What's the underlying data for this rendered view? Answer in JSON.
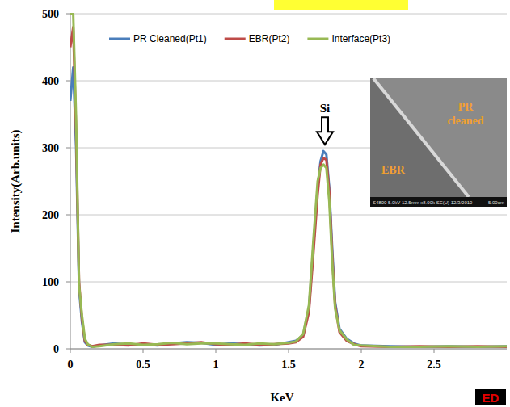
{
  "chart_data": {
    "type": "line",
    "x_label": "KeV",
    "y_label": "Intensity(Arb.units)",
    "xlim": [
      0,
      3
    ],
    "xticks": [
      0,
      0.5,
      1,
      1.5,
      2,
      2.5
    ],
    "ylim": [
      0,
      500
    ],
    "yticks": [
      0,
      100,
      200,
      300,
      400,
      500
    ],
    "grid": true,
    "legend": "top",
    "x": [
      0,
      0.02,
      0.04,
      0.06,
      0.08,
      0.1,
      0.12,
      0.15,
      0.2,
      0.3,
      0.4,
      0.5,
      0.6,
      0.7,
      0.8,
      0.9,
      1.0,
      1.1,
      1.2,
      1.3,
      1.4,
      1.5,
      1.55,
      1.6,
      1.64,
      1.67,
      1.7,
      1.72,
      1.74,
      1.76,
      1.78,
      1.8,
      1.82,
      1.85,
      1.9,
      1.95,
      2.0,
      2.2,
      2.4,
      2.6,
      2.8,
      3.0
    ],
    "series": [
      {
        "name": "PR Cleaned(Pt1)",
        "color": "#4a7ebb",
        "values": [
          370,
          420,
          300,
          90,
          40,
          10,
          5,
          3,
          5,
          8,
          6,
          7,
          5,
          8,
          10,
          9,
          6,
          8,
          7,
          5,
          6,
          10,
          12,
          20,
          60,
          150,
          240,
          280,
          295,
          290,
          240,
          150,
          70,
          30,
          15,
          8,
          5,
          4,
          3,
          4,
          3,
          4
        ]
      },
      {
        "name": "EBR(Pt2)",
        "color": "#be4b48",
        "values": [
          450,
          480,
          320,
          100,
          45,
          12,
          6,
          4,
          6,
          6,
          5,
          8,
          6,
          7,
          8,
          10,
          7,
          6,
          8,
          6,
          7,
          8,
          10,
          18,
          55,
          140,
          230,
          275,
          285,
          282,
          235,
          140,
          65,
          25,
          12,
          7,
          4,
          3,
          4,
          3,
          4,
          3
        ]
      },
      {
        "name": "Interface(Pt3)",
        "color": "#98b954",
        "values": [
          500,
          500,
          340,
          95,
          50,
          15,
          7,
          3,
          4,
          7,
          8,
          6,
          7,
          9,
          7,
          8,
          8,
          7,
          6,
          8,
          7,
          9,
          11,
          22,
          65,
          160,
          250,
          270,
          275,
          270,
          220,
          130,
          60,
          28,
          14,
          6,
          5,
          3,
          3,
          4,
          3,
          4
        ]
      }
    ],
    "annotations": [
      {
        "text": "Si",
        "x": 1.75
      }
    ],
    "inset": {
      "labels": [
        "PR cleaned",
        "EBR"
      ],
      "caption": "S4800 5.0kV 12.5mm x8.00k SE(U) 12/3/2010",
      "scale": "5.00um"
    },
    "badge": "ED"
  }
}
